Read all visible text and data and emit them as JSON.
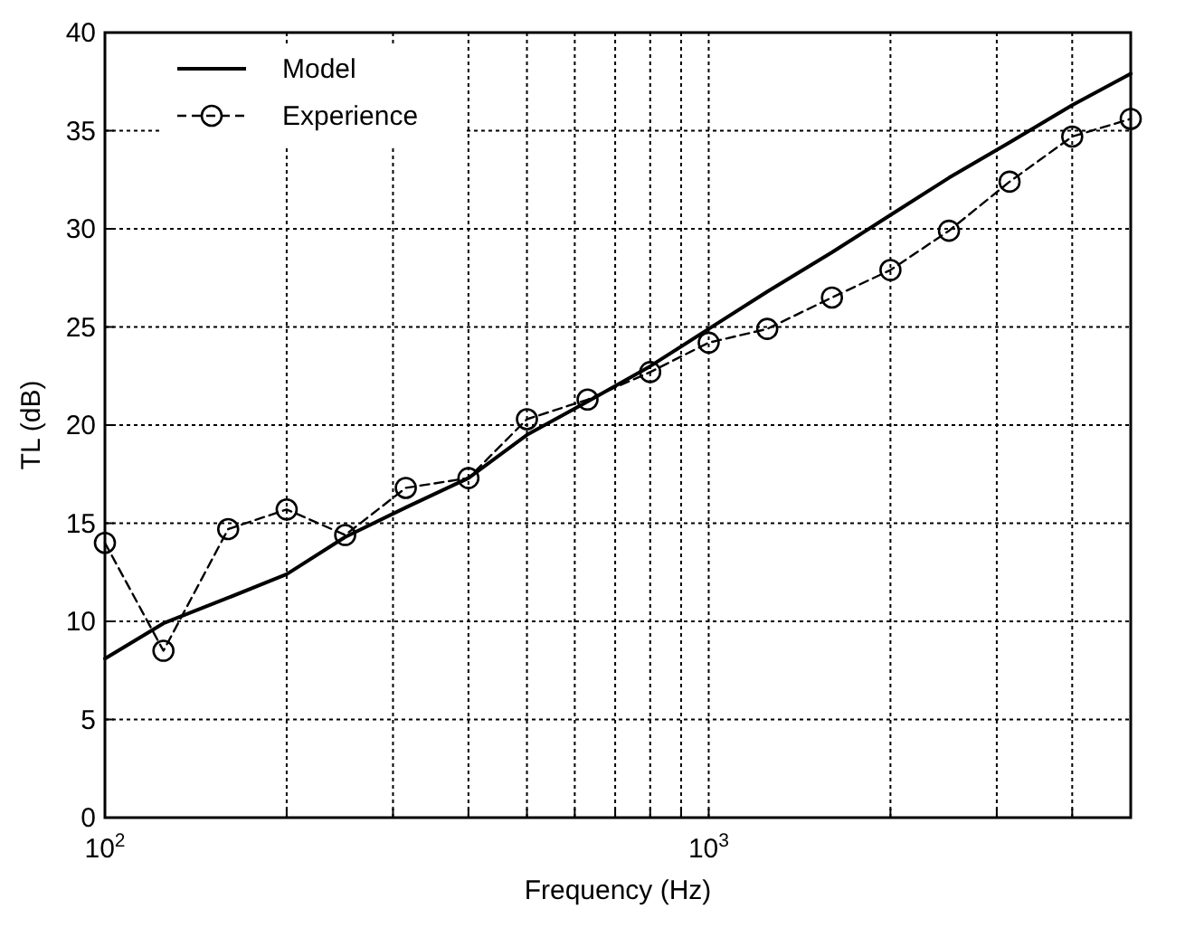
{
  "chart_data": {
    "type": "line",
    "xlabel": "Frequency (Hz)",
    "ylabel": "TL (dB)",
    "log": "x",
    "grid": true,
    "legend": "top left",
    "xlim": [
      100,
      5000
    ],
    "ylim": [
      0,
      40
    ],
    "xticks": [
      {
        "value": 100,
        "label": "10$^{2}$"
      },
      {
        "value": 200,
        "label": null
      },
      {
        "value": 300,
        "label": null
      },
      {
        "value": 400,
        "label": null
      },
      {
        "value": 500,
        "label": null
      },
      {
        "value": 600,
        "label": null
      },
      {
        "value": 700,
        "label": null
      },
      {
        "value": 800,
        "label": null
      },
      {
        "value": 900,
        "label": null
      },
      {
        "value": 1000,
        "label": "10$^{3}$"
      },
      {
        "value": 2000,
        "label": null
      },
      {
        "value": 3000,
        "label": null
      },
      {
        "value": 4000,
        "label": null
      }
    ],
    "yticks": [
      0,
      5,
      10,
      15,
      20,
      25,
      30,
      35,
      40
    ],
    "series": [
      {
        "name": "Model",
        "color": "#000000",
        "line_style": "solid",
        "marker": "none",
        "x": [
          100,
          125,
          160,
          200,
          250,
          315,
          400,
          500,
          630,
          800,
          1000,
          1250,
          1600,
          2000,
          2500,
          3150,
          4000,
          5000
        ],
        "values": [
          8.1,
          9.9,
          11.2,
          12.4,
          14.3,
          15.8,
          17.3,
          19.5,
          21.2,
          23.0,
          24.9,
          26.8,
          28.8,
          30.7,
          32.6,
          34.4,
          36.3,
          37.9
        ]
      },
      {
        "name": "Experience",
        "color": "#000000",
        "line_style": "dashed",
        "marker": "circle",
        "x": [
          100,
          125,
          160,
          200,
          250,
          315,
          400,
          500,
          630,
          800,
          1000,
          1250,
          1600,
          2000,
          2500,
          3150,
          4000,
          5000
        ],
        "values": [
          14.0,
          8.5,
          14.7,
          15.7,
          14.4,
          16.8,
          17.3,
          20.3,
          21.3,
          22.7,
          24.2,
          24.9,
          26.5,
          27.9,
          29.9,
          32.4,
          34.7,
          35.6
        ]
      }
    ]
  }
}
